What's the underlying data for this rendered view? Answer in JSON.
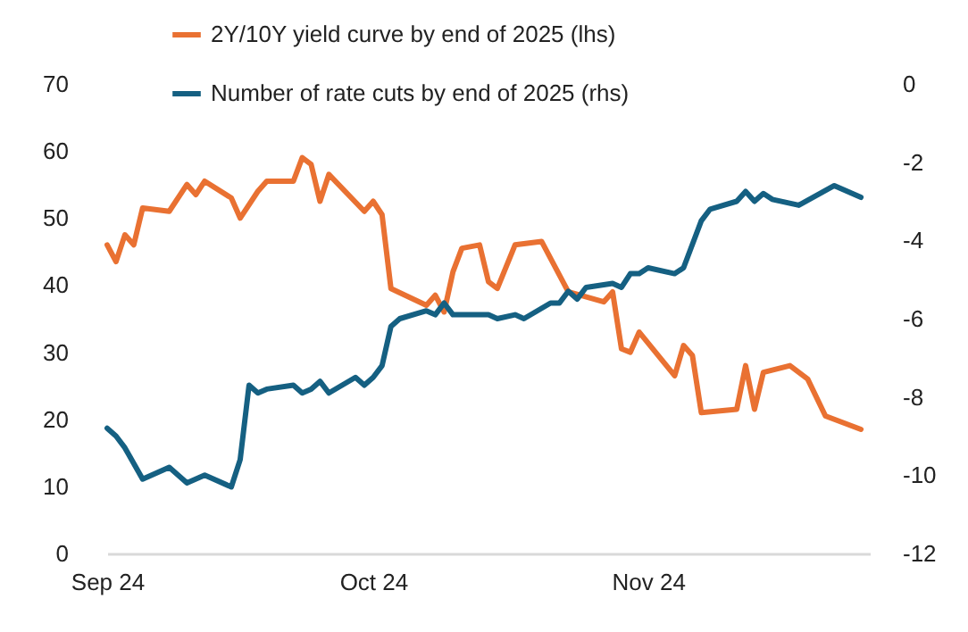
{
  "chart_data": {
    "type": "line",
    "xlim": [
      "2024-09-01",
      "2024-11-26"
    ],
    "xticks": [
      {
        "value": "2024-09-01",
        "label": "Sep 24"
      },
      {
        "value": "2024-10-01",
        "label": "Oct 24"
      },
      {
        "value": "2024-11-01",
        "label": "Nov 24"
      }
    ],
    "ylim": [
      0,
      70
    ],
    "yticks": [
      0,
      10,
      20,
      30,
      40,
      50,
      60,
      70
    ],
    "y2lim": [
      -12,
      0
    ],
    "y2ticks": [
      -12,
      -10,
      -8,
      -6,
      -4,
      -2,
      0
    ],
    "grid": false,
    "legend": "top",
    "marker": "none",
    "line_style": "solid",
    "series": [
      {
        "name": "2Y/10Y yield curve by end of 2025 (lhs)",
        "color": "#e97132",
        "x": [
          "2024-09-01",
          "2024-09-02",
          "2024-09-03",
          "2024-09-04",
          "2024-09-05",
          "2024-09-08",
          "2024-09-10",
          "2024-09-11",
          "2024-09-12",
          "2024-09-15",
          "2024-09-16",
          "2024-09-18",
          "2024-09-19",
          "2024-09-22",
          "2024-09-23",
          "2024-09-24",
          "2024-09-25",
          "2024-09-26",
          "2024-09-30",
          "2024-10-01",
          "2024-10-02",
          "2024-10-03",
          "2024-10-07",
          "2024-10-08",
          "2024-10-09",
          "2024-10-10",
          "2024-10-11",
          "2024-10-13",
          "2024-10-14",
          "2024-10-15",
          "2024-10-17",
          "2024-10-20",
          "2024-10-23",
          "2024-10-27",
          "2024-10-28",
          "2024-10-29",
          "2024-10-30",
          "2024-10-31",
          "2024-11-04",
          "2024-11-05",
          "2024-11-06",
          "2024-11-07",
          "2024-11-11",
          "2024-11-12",
          "2024-11-13",
          "2024-11-14",
          "2024-11-17",
          "2024-11-19",
          "2024-11-21",
          "2024-11-25"
        ],
        "values": [
          46,
          43.5,
          47.5,
          46,
          51.5,
          51,
          55,
          53.5,
          55.5,
          53,
          50,
          54,
          55.5,
          55.5,
          59,
          58,
          52.5,
          56.5,
          51,
          52.5,
          50.5,
          39.5,
          37,
          38.5,
          36,
          42,
          45.5,
          46,
          40.5,
          39.5,
          46,
          46.5,
          39,
          37.5,
          39,
          30.5,
          30,
          33,
          26.5,
          31,
          29.5,
          21,
          21.5,
          28,
          21.5,
          27,
          28,
          26,
          20.5,
          18.5
        ]
      },
      {
        "name": "Number of rate cuts by end of 2025 (rhs)",
        "color": "#156082",
        "axis": "y2",
        "x": [
          "2024-09-01",
          "2024-09-02",
          "2024-09-03",
          "2024-09-05",
          "2024-09-08",
          "2024-09-10",
          "2024-09-12",
          "2024-09-15",
          "2024-09-16",
          "2024-09-17",
          "2024-09-18",
          "2024-09-19",
          "2024-09-22",
          "2024-09-23",
          "2024-09-24",
          "2024-09-25",
          "2024-09-26",
          "2024-09-29",
          "2024-09-30",
          "2024-10-01",
          "2024-10-02",
          "2024-10-03",
          "2024-10-04",
          "2024-10-07",
          "2024-10-08",
          "2024-10-09",
          "2024-10-10",
          "2024-10-14",
          "2024-10-15",
          "2024-10-17",
          "2024-10-18",
          "2024-10-21",
          "2024-10-22",
          "2024-10-23",
          "2024-10-24",
          "2024-10-25",
          "2024-10-28",
          "2024-10-29",
          "2024-10-30",
          "2024-10-31",
          "2024-11-01",
          "2024-11-04",
          "2024-11-05",
          "2024-11-07",
          "2024-11-08",
          "2024-11-11",
          "2024-11-12",
          "2024-11-13",
          "2024-11-14",
          "2024-11-15",
          "2024-11-18",
          "2024-11-20",
          "2024-11-22",
          "2024-11-25"
        ],
        "values": [
          -8.8,
          -9,
          -9.3,
          -10.1,
          -9.8,
          -10.2,
          -10,
          -10.3,
          -9.6,
          -7.7,
          -7.9,
          -7.8,
          -7.7,
          -7.9,
          -7.8,
          -7.6,
          -7.9,
          -7.5,
          -7.7,
          -7.5,
          -7.2,
          -6.2,
          -6,
          -5.8,
          -5.9,
          -5.6,
          -5.9,
          -5.9,
          -6,
          -5.9,
          -6,
          -5.6,
          -5.6,
          -5.3,
          -5.5,
          -5.2,
          -5.1,
          -5.2,
          -4.85,
          -4.85,
          -4.7,
          -4.85,
          -4.7,
          -3.5,
          -3.2,
          -3,
          -2.75,
          -3,
          -2.8,
          -2.95,
          -3.1,
          -2.85,
          -2.6,
          -2.9
        ]
      }
    ]
  }
}
